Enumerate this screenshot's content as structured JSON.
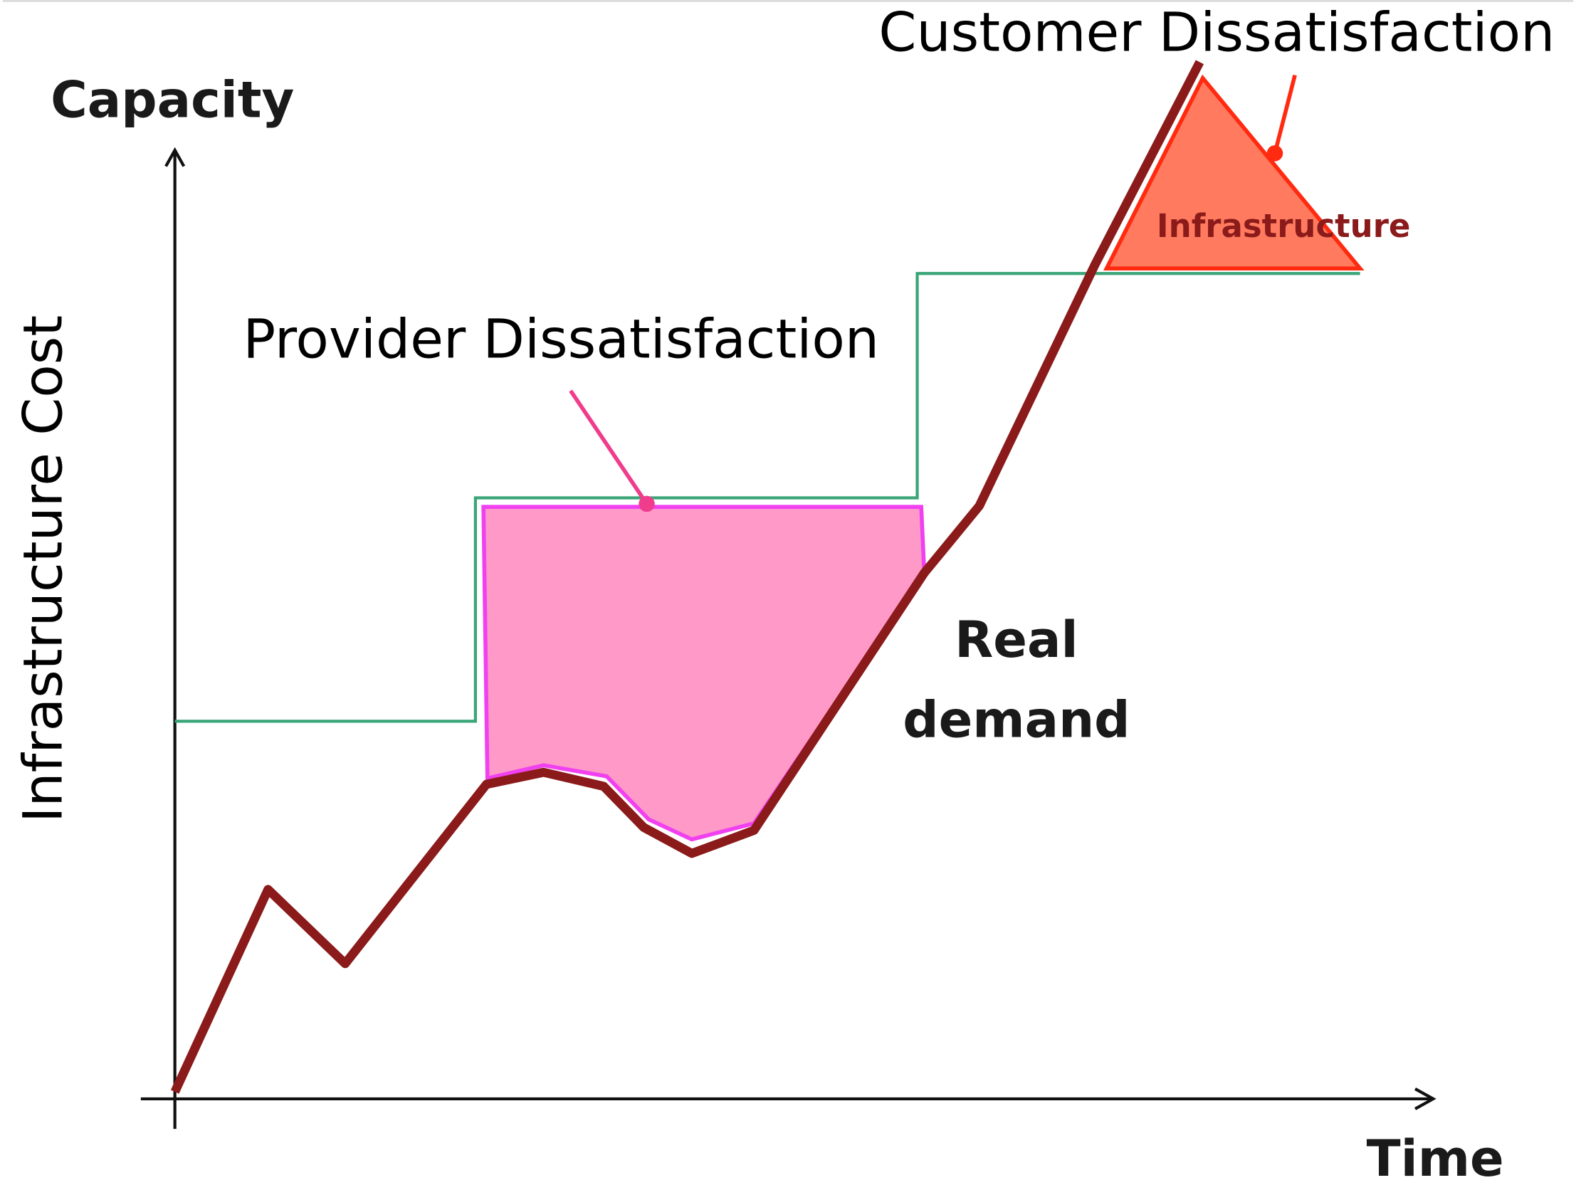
{
  "labels": {
    "y_axis_title": "Capacity",
    "y_axis_label": "Infrastructure Cost",
    "x_axis_title": "Time",
    "provider": "Provider Dissatisfaction",
    "customer": "Customer Dissatisfaction",
    "infrastructure": "Infrastructure",
    "demand": [
      "Real",
      "demand"
    ]
  }
}
